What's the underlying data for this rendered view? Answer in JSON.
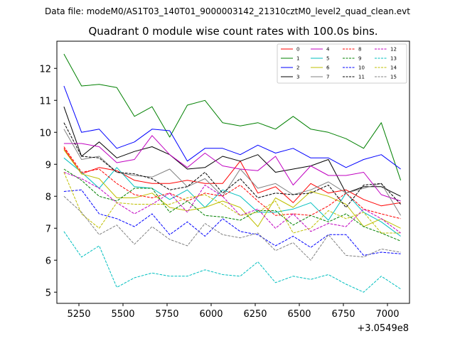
{
  "chart_data": {
    "type": "line",
    "suptitle": "Data file: modeM0/AS1T03_140T01_9000003142_21310cztM0_level2_quad_clean.evt",
    "title": "Quadrant 0 module wise count rates with 100.0s bins.",
    "xlabel": "",
    "ylabel": "",
    "x_offset_label": "+3.0549e8",
    "xlim": [
      5125,
      7125
    ],
    "ylim": [
      4.65,
      12.85
    ],
    "xticks": [
      5250,
      5500,
      5750,
      6000,
      6250,
      6500,
      6750,
      7000
    ],
    "yticks": [
      5,
      6,
      7,
      8,
      9,
      10,
      11,
      12
    ],
    "grid": false,
    "legend_position": "top-right",
    "legend_columns": 4,
    "x": [
      5165,
      5265,
      5365,
      5465,
      5565,
      5665,
      5765,
      5865,
      5965,
      6065,
      6165,
      6265,
      6365,
      6465,
      6565,
      6665,
      6765,
      6865,
      6965,
      7075
    ],
    "series": [
      {
        "name": "0",
        "color": "#ff0000",
        "dash": "solid",
        "values": [
          9.5,
          8.7,
          8.9,
          8.8,
          8.5,
          8.4,
          8.4,
          8.5,
          8.4,
          8.4,
          9.1,
          8.1,
          8.3,
          7.8,
          8.4,
          8.1,
          8.2,
          7.9,
          7.7,
          7.8
        ]
      },
      {
        "name": "1",
        "color": "#008000",
        "dash": "solid",
        "values": [
          12.45,
          11.45,
          11.5,
          11.4,
          10.5,
          10.8,
          9.85,
          10.85,
          11.0,
          10.3,
          10.2,
          10.3,
          10.1,
          10.5,
          10.1,
          10.0,
          9.8,
          9.5,
          10.3,
          8.5
        ]
      },
      {
        "name": "2",
        "color": "#0000ff",
        "dash": "solid",
        "values": [
          11.45,
          10.0,
          10.1,
          9.5,
          9.7,
          10.1,
          10.05,
          9.1,
          9.5,
          9.5,
          9.3,
          9.6,
          9.35,
          9.5,
          9.2,
          9.2,
          8.9,
          9.15,
          9.3,
          8.85
        ]
      },
      {
        "name": "3",
        "color": "#000000",
        "dash": "solid",
        "values": [
          10.8,
          9.25,
          9.7,
          9.2,
          9.4,
          9.55,
          9.3,
          8.85,
          8.9,
          9.25,
          9.1,
          9.3,
          8.75,
          8.85,
          8.95,
          9.15,
          8.1,
          8.3,
          8.3,
          8.0
        ]
      },
      {
        "name": "4",
        "color": "#c000c0",
        "dash": "solid",
        "values": [
          9.65,
          9.65,
          9.55,
          9.05,
          9.15,
          9.9,
          9.3,
          8.9,
          9.35,
          8.95,
          8.85,
          8.8,
          9.25,
          8.35,
          8.95,
          8.65,
          8.65,
          8.75,
          8.05,
          7.85
        ]
      },
      {
        "name": "5",
        "color": "#00bfbf",
        "dash": "solid",
        "values": [
          9.2,
          8.75,
          8.25,
          8.9,
          8.3,
          8.25,
          7.9,
          8.2,
          7.65,
          8.2,
          8.0,
          7.5,
          7.5,
          7.6,
          7.8,
          7.25,
          8.1,
          7.5,
          7.2,
          6.75
        ]
      },
      {
        "name": "6",
        "color": "#bfbf00",
        "dash": "solid",
        "values": [
          9.45,
          8.7,
          8.55,
          7.95,
          7.95,
          8.1,
          7.65,
          7.55,
          7.65,
          7.85,
          7.65,
          7.05,
          7.95,
          7.65,
          8.15,
          8.0,
          7.75,
          7.05,
          7.3,
          7.0
        ]
      },
      {
        "name": "7",
        "color": "#808080",
        "dash": "solid",
        "values": [
          10.1,
          9.15,
          9.25,
          8.75,
          8.65,
          8.6,
          8.85,
          8.3,
          8.55,
          8.0,
          8.85,
          8.25,
          8.4,
          8.05,
          8.2,
          8.45,
          8.1,
          8.25,
          8.4,
          7.4
        ]
      },
      {
        "name": "8",
        "color": "#ff0000",
        "dash": "dashed",
        "values": [
          9.55,
          8.75,
          8.85,
          8.4,
          8.05,
          7.95,
          8.1,
          7.85,
          8.1,
          8.0,
          8.35,
          7.85,
          7.4,
          7.45,
          7.4,
          7.7,
          8.1,
          7.6,
          7.45,
          7.3
        ]
      },
      {
        "name": "9",
        "color": "#008000",
        "dash": "dashed",
        "values": [
          8.85,
          8.5,
          8.0,
          7.85,
          8.25,
          8.25,
          7.5,
          7.85,
          7.4,
          7.35,
          7.25,
          7.55,
          7.55,
          7.1,
          7.4,
          7.2,
          7.45,
          7.05,
          6.85,
          6.6
        ]
      },
      {
        "name": "10",
        "color": "#0000ff",
        "dash": "dashed",
        "values": [
          8.15,
          8.2,
          7.45,
          7.3,
          7.05,
          7.45,
          6.8,
          7.2,
          6.75,
          7.3,
          6.9,
          6.8,
          6.45,
          6.75,
          6.4,
          6.8,
          6.8,
          6.15,
          6.25,
          6.2
        ]
      },
      {
        "name": "11",
        "color": "#000000",
        "dash": "dashed",
        "values": [
          10.3,
          9.25,
          9.2,
          8.75,
          8.7,
          8.55,
          8.2,
          8.3,
          8.75,
          8.1,
          8.55,
          7.95,
          8.1,
          8.05,
          8.1,
          8.35,
          7.65,
          8.35,
          8.4,
          7.75
        ]
      },
      {
        "name": "12",
        "color": "#c000c0",
        "dash": "dashed",
        "values": [
          8.75,
          8.55,
          8.25,
          7.8,
          7.45,
          7.75,
          8.1,
          7.5,
          8.35,
          8.0,
          7.4,
          7.6,
          7.0,
          7.45,
          6.9,
          7.15,
          7.05,
          7.6,
          7.3,
          6.85
        ]
      },
      {
        "name": "13",
        "color": "#00bfbf",
        "dash": "dashed",
        "values": [
          6.9,
          6.1,
          6.45,
          5.15,
          5.45,
          5.6,
          5.5,
          5.5,
          5.7,
          5.55,
          5.5,
          5.95,
          5.3,
          5.5,
          5.4,
          5.55,
          5.25,
          5.0,
          5.5,
          5.1
        ]
      },
      {
        "name": "14",
        "color": "#bfbf00",
        "dash": "dashed",
        "values": [
          8.75,
          7.45,
          7.0,
          7.8,
          7.75,
          7.75,
          7.75,
          7.95,
          8.05,
          7.75,
          7.4,
          7.5,
          7.85,
          6.85,
          7.0,
          7.55,
          7.3,
          7.5,
          6.85,
          6.85
        ]
      },
      {
        "name": "15",
        "color": "#808080",
        "dash": "dashed",
        "values": [
          8.0,
          7.5,
          6.8,
          7.1,
          6.5,
          7.05,
          6.65,
          6.45,
          7.15,
          6.8,
          6.7,
          6.85,
          6.3,
          6.55,
          6.0,
          6.8,
          6.15,
          6.1,
          6.35,
          6.25
        ]
      }
    ]
  }
}
